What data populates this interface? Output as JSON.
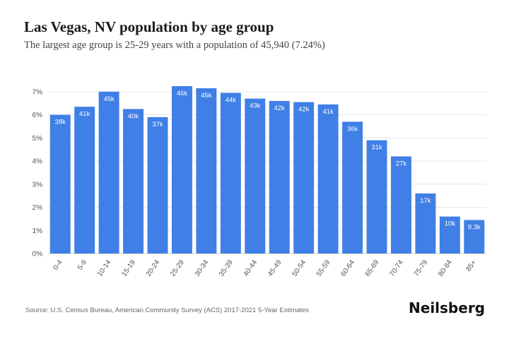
{
  "header": {
    "title": "Las Vegas, NV population by age group",
    "subtitle": "The largest age group is 25-29 years with a population of 45,940 (7.24%)"
  },
  "footer": {
    "source": "Source: U.S. Census Bureau, American Community Survey (ACS) 2017-2021 5-Year Estimates",
    "brand": "Neilsberg"
  },
  "chart_data": {
    "type": "bar",
    "title": "Las Vegas, NV population by age group",
    "categories": [
      "0-4",
      "5-9",
      "10-14",
      "15-19",
      "20-24",
      "25-29",
      "30-34",
      "35-39",
      "40-44",
      "45-49",
      "50-54",
      "55-59",
      "60-64",
      "65-69",
      "70-74",
      "75-79",
      "80-84",
      "85+"
    ],
    "values": [
      6.0,
      6.35,
      7.0,
      6.25,
      5.9,
      7.24,
      7.15,
      6.95,
      6.7,
      6.6,
      6.55,
      6.45,
      5.7,
      4.9,
      4.2,
      2.6,
      1.6,
      1.45
    ],
    "data_labels": [
      "38k",
      "41k",
      "45k",
      "40k",
      "37k",
      "46k",
      "45k",
      "44k",
      "43k",
      "42k",
      "42k",
      "41k",
      "36k",
      "31k",
      "27k",
      "17k",
      "10k",
      "9.3k"
    ],
    "y_ticks": [
      "0%",
      "1%",
      "2%",
      "3%",
      "4%",
      "5%",
      "6%",
      "7%"
    ],
    "ylim": [
      0,
      7.3
    ],
    "bar_color": "#3f7fe6",
    "grid": true,
    "legend": "none"
  }
}
